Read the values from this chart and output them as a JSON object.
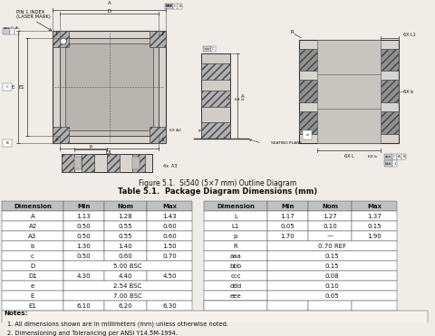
{
  "figure_caption": "Figure 5.1.  Si540 (5×7 mm) Outline Diagram",
  "table_title": "Table 5.1.  Package Diagram Dimensions (mm)",
  "table_headers": [
    "Dimension",
    "Min",
    "Nom",
    "Max"
  ],
  "left_table": [
    [
      "A",
      "1.13",
      "1.28",
      "1.43"
    ],
    [
      "A2",
      "0.50",
      "0.55",
      "0.60"
    ],
    [
      "A3",
      "0.50",
      "0.55",
      "0.60"
    ],
    [
      "b",
      "1.30",
      "1.40",
      "1.50"
    ],
    [
      "c",
      "0.50",
      "0.60",
      "0.70"
    ],
    [
      "D",
      "",
      "5.00 BSC",
      ""
    ],
    [
      "D1",
      "4.30",
      "4.40",
      "4.50"
    ],
    [
      "e",
      "",
      "2.54 BSC",
      ""
    ],
    [
      "E",
      "",
      "7.00 BSC",
      ""
    ],
    [
      "E1",
      "6.10",
      "6.20",
      "6.30"
    ]
  ],
  "right_table": [
    [
      "L",
      "1.17",
      "1.27",
      "1.37"
    ],
    [
      "L1",
      "0.05",
      "0.10",
      "0.15"
    ],
    [
      "p",
      "1.70",
      "—",
      "1.90"
    ],
    [
      "R",
      "",
      "0.70 REF",
      ""
    ],
    [
      "aaa",
      "",
      "0.15",
      ""
    ],
    [
      "bbb",
      "",
      "0.15",
      ""
    ],
    [
      "ccc",
      "",
      "0.08",
      ""
    ],
    [
      "ddd",
      "",
      "0.10",
      ""
    ],
    [
      "eee",
      "",
      "0.05",
      ""
    ],
    [
      "",
      "",
      "",
      ""
    ]
  ],
  "notes": [
    "Notes:",
    "1. All dimensions shown are in millimeters (mm) unless otherwise noted.",
    "2. Dimensioning and Tolerancing per ANSI Y14.5M-1994."
  ],
  "bg_color": "#f0ede8",
  "header_bg": "#c0c0c0",
  "text_color": "#111111",
  "diag_bg": "#e8e5e0",
  "pad_color": "#a0a0a0",
  "center_pad": "#c8c5c0"
}
